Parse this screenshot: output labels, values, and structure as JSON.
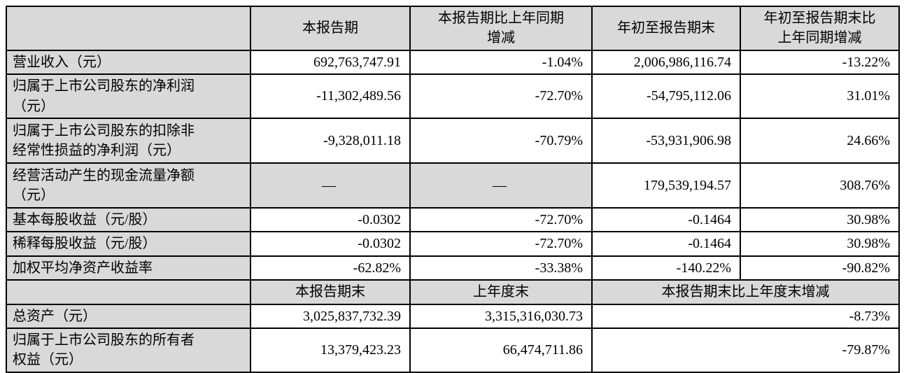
{
  "table": {
    "colors": {
      "header_bg": "#d9d9d9",
      "border": "#000000",
      "text": "#000000",
      "page_bg": "#ffffff"
    },
    "header": {
      "corner": "",
      "col1": "本报告期",
      "col2": "本报告期比上年同期\n增减",
      "col3": "年初至报告期末",
      "col4": "年初至报告期末比\n上年同期增减"
    },
    "rows": [
      {
        "label": "营业收入（元）",
        "c1": "692,763,747.91",
        "c2": "-1.04%",
        "c3": "2,006,986,116.74",
        "c4": "-13.22%"
      },
      {
        "label": "归属于上市公司股东的净利润\n（元）",
        "c1": "-11,302,489.56",
        "c2": "-72.70%",
        "c3": "-54,795,112.06",
        "c4": "31.01%"
      },
      {
        "label": "归属于上市公司股东的扣除非\n经常性损益的净利润（元）",
        "c1": "-9,328,011.18",
        "c2": "-70.79%",
        "c3": "-53,931,906.98",
        "c4": "24.66%"
      },
      {
        "label": "经营活动产生的现金流量净额\n（元）",
        "c1": "—",
        "c2": "—",
        "c3": "179,539,194.57",
        "c4": "308.76%"
      },
      {
        "label": "基本每股收益（元/股）",
        "c1": "-0.0302",
        "c2": "-72.70%",
        "c3": "-0.1464",
        "c4": "30.98%"
      },
      {
        "label": "稀释每股收益（元/股）",
        "c1": "-0.0302",
        "c2": "-72.70%",
        "c3": "-0.1464",
        "c4": "30.98%"
      },
      {
        "label": "加权平均净资产收益率",
        "c1": "-62.82%",
        "c2": "-33.38%",
        "c3": "-140.22%",
        "c4": "-90.82%"
      }
    ],
    "subheader": {
      "corner": "",
      "col1": "本报告期末",
      "col2": "上年度末",
      "col34": "本报告期末比上年度末增减"
    },
    "bottom_rows": [
      {
        "label": "总资产（元）",
        "c1": "3,025,837,732.39",
        "c2": "3,315,316,030.73",
        "c34": "-8.73%"
      },
      {
        "label": "归属于上市公司股东的所有者\n权益（元）",
        "c1": "13,379,423.23",
        "c2": "66,474,711.86",
        "c34": "-79.87%"
      }
    ]
  }
}
